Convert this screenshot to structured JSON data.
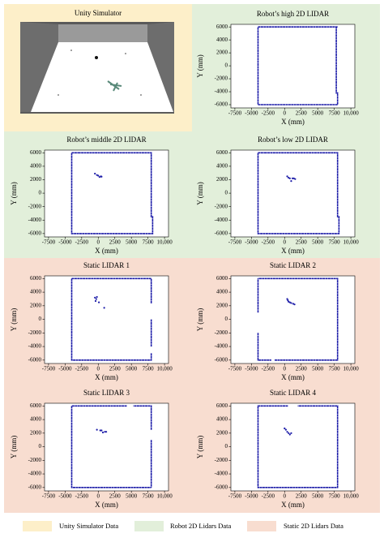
{
  "unity_panel": {
    "title": "Unity Simulator"
  },
  "legend": [
    "Unity Simulator Data",
    "Robot 2D Lidars Data",
    "Static 2D Lidars Data"
  ],
  "chart_data": [
    {
      "type": "scatter",
      "title": "Robot’s high 2D LIDAR",
      "xlabel": "X (mm)",
      "ylabel": "Y (mm)",
      "xlim": [
        -8100,
        10600
      ],
      "ylim": [
        -6500,
        6400
      ],
      "xticks": [
        -7500,
        -5000,
        -2500,
        0,
        2500,
        5000,
        7500,
        {
          "value": 10000,
          "label": "10,000"
        }
      ],
      "yticks": [
        6000,
        4000,
        2000,
        0,
        -2000,
        -4000,
        -6000
      ],
      "series": [
        {
          "mode": "line",
          "color": "#1c1ca8",
          "x": [
            -4000,
            8000,
            7800,
            7800,
            8000,
            8000,
            -4000,
            -4000
          ],
          "y": [
            6000,
            6000,
            6000,
            -4200,
            -4200,
            -6000,
            -6000,
            6000
          ]
        }
      ]
    },
    {
      "type": "scatter",
      "title": "Robot’s middle 2D LIDAR",
      "xlabel": "X (mm)",
      "ylabel": "Y (mm)",
      "xlim": [
        -8100,
        10600
      ],
      "ylim": [
        -6500,
        6400
      ],
      "xticks": [
        -7500,
        -5000,
        -2500,
        0,
        2500,
        5000,
        7500,
        {
          "value": 10000,
          "label": "10,000"
        }
      ],
      "yticks": [
        6000,
        4000,
        2000,
        0,
        -2000,
        -4000,
        -6000
      ],
      "series": [
        {
          "mode": "line",
          "color": "#1c1ca8",
          "x": [
            -4000,
            -3000,
            null,
            -3000,
            8000,
            8000,
            8200,
            8200,
            -4000,
            -4000
          ],
          "y": [
            6000,
            6000,
            null,
            6000,
            6000,
            -3500,
            -3500,
            -6000,
            -6000,
            6000
          ]
        },
        {
          "mode": "scatter",
          "color": "#1c1ca8",
          "x": [
            -500,
            -200,
            0,
            200,
            400,
            500
          ],
          "y": [
            2900,
            2700,
            2600,
            2400,
            2500,
            2450
          ]
        }
      ]
    },
    {
      "type": "scatter",
      "title": "Robot’s low 2D LIDAR",
      "xlabel": "X (mm)",
      "ylabel": "Y (mm)",
      "xlim": [
        -8100,
        10600
      ],
      "ylim": [
        -6500,
        6400
      ],
      "xticks": [
        -7500,
        -5000,
        -2500,
        0,
        2500,
        5000,
        7500,
        {
          "value": 10000,
          "label": "10,000"
        }
      ],
      "yticks": [
        6000,
        4000,
        2000,
        0,
        -2000,
        -4000,
        -6000
      ],
      "series": [
        {
          "mode": "line",
          "color": "#1c1ca8",
          "x": [
            -4000,
            -3000,
            null,
            -3000,
            8000,
            8000,
            8200,
            8200,
            -4000,
            -4000
          ],
          "y": [
            6000,
            6000,
            null,
            6000,
            6000,
            -3500,
            -3500,
            -6000,
            -6000,
            6000
          ]
        },
        {
          "mode": "scatter",
          "color": "#1c1ca8",
          "x": [
            400,
            600,
            800,
            1000,
            1200,
            1400,
            1600
          ],
          "y": [
            2500,
            2300,
            2200,
            1800,
            2200,
            2200,
            2100
          ]
        }
      ]
    },
    {
      "type": "scatter",
      "title": "Static LIDAR 1",
      "xlabel": "X (mm)",
      "ylabel": "Y (mm)",
      "xlim": [
        -8100,
        10600
      ],
      "ylim": [
        -6500,
        6400
      ],
      "xticks": [
        -7500,
        -5000,
        -2500,
        0,
        2500,
        5000,
        7500,
        {
          "value": 10000,
          "label": "10,000"
        }
      ],
      "yticks": [
        6000,
        4000,
        2000,
        0,
        -2000,
        -4000,
        -6000
      ],
      "series": [
        {
          "mode": "line",
          "color": "#1c1ca8",
          "x": [
            -4000,
            8000,
            8000,
            null,
            8000,
            8000,
            null,
            8000,
            8000,
            -4000,
            -4000
          ],
          "y": [
            6000,
            6000,
            2300,
            null,
            0,
            -4000,
            null,
            -5000,
            -6000,
            -6000,
            6000
          ]
        },
        {
          "mode": "scatter",
          "color": "#1c1ca8",
          "x": [
            -500,
            -300,
            -400,
            -200,
            100,
            900
          ],
          "y": [
            3200,
            3000,
            2700,
            3300,
            2500,
            1700
          ]
        }
      ]
    },
    {
      "type": "scatter",
      "title": "Static LIDAR 2",
      "xlabel": "X (mm)",
      "ylabel": "Y (mm)",
      "xlim": [
        -8100,
        10600
      ],
      "ylim": [
        -6500,
        6400
      ],
      "xticks": [
        -7500,
        -5000,
        -2500,
        0,
        2500,
        5000,
        7500,
        {
          "value": 10000,
          "label": "10,000"
        }
      ],
      "yticks": [
        6000,
        4000,
        2000,
        0,
        -2000,
        -4000,
        -6000
      ],
      "series": [
        {
          "mode": "line",
          "color": "#1c1ca8",
          "x": [
            -4000,
            -4000,
            null,
            -4000,
            -4000,
            -2000,
            null,
            -1500,
            8000,
            8000,
            -4000
          ],
          "y": [
            1000,
            6000,
            null,
            -2000,
            -6000,
            -6000,
            null,
            -6000,
            -6000,
            6000,
            6000
          ]
        },
        {
          "mode": "scatter",
          "color": "#1c1ca8",
          "x": [
            400,
            500,
            600,
            800,
            1000,
            1300,
            1500
          ],
          "y": [
            3000,
            2800,
            2600,
            2500,
            2400,
            2300,
            2200
          ]
        }
      ]
    },
    {
      "type": "scatter",
      "title": "Static LIDAR 3",
      "xlabel": "X (mm)",
      "ylabel": "Y (mm)",
      "xlim": [
        -8100,
        10600
      ],
      "ylim": [
        -6500,
        6400
      ],
      "xticks": [
        -7500,
        -5000,
        -2500,
        0,
        2500,
        5000,
        7500,
        {
          "value": 10000,
          "label": "10,000"
        }
      ],
      "yticks": [
        6000,
        4000,
        2000,
        0,
        -2000,
        -4000,
        -6000
      ],
      "series": [
        {
          "mode": "line",
          "color": "#1c1ca8",
          "x": [
            8000,
            8000,
            5300,
            null,
            4300,
            -4000,
            -4000,
            8000,
            8000,
            null,
            8000,
            8000
          ],
          "y": [
            2500,
            6000,
            6000,
            null,
            6000,
            6000,
            -6000,
            -6000,
            -6000,
            null,
            1000,
            -6000
          ]
        },
        {
          "mode": "scatter",
          "color": "#1c1ca8",
          "x": [
            -200,
            300,
            500,
            700,
            1000,
            1200
          ],
          "y": [
            2500,
            2400,
            2400,
            2100,
            2200,
            2200
          ]
        }
      ]
    },
    {
      "type": "scatter",
      "title": "Static LIDAR 4",
      "xlabel": "X (mm)",
      "ylabel": "Y (mm)",
      "xlim": [
        -8100,
        10600
      ],
      "ylim": [
        -6500,
        6400
      ],
      "xticks": [
        -7500,
        -5000,
        -2500,
        0,
        2500,
        5000,
        7500,
        {
          "value": 10000,
          "label": "10,000"
        }
      ],
      "yticks": [
        6000,
        4000,
        2000,
        0,
        -2000,
        -4000,
        -6000
      ],
      "series": [
        {
          "mode": "line",
          "color": "#1c1ca8",
          "x": [
            500,
            -4000,
            -4000,
            8000,
            8000,
            2000
          ],
          "y": [
            6000,
            6000,
            -6000,
            -6000,
            6000,
            6000
          ]
        },
        {
          "mode": "scatter",
          "color": "#1c1ca8",
          "x": [
            0,
            200,
            400,
            600,
            800,
            1000
          ],
          "y": [
            2700,
            2500,
            2200,
            2000,
            1800,
            2000
          ]
        }
      ]
    }
  ]
}
